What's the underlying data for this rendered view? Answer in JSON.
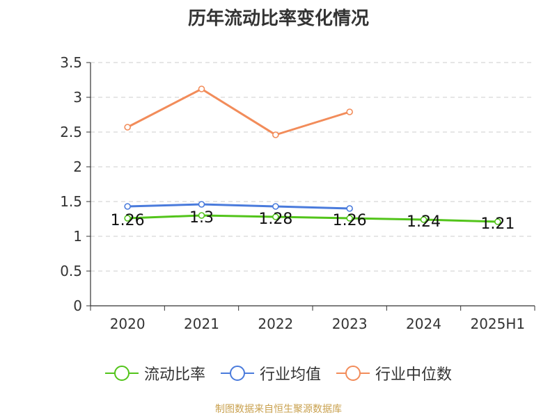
{
  "chart_data": {
    "type": "line",
    "title": "历年流动比率变化情况",
    "categories": [
      "2020",
      "2021",
      "2022",
      "2023",
      "2024",
      "2025H1"
    ],
    "y_ticks": [
      "0",
      "0.5",
      "1",
      "1.5",
      "2",
      "2.5",
      "3",
      "3.5"
    ],
    "ylim": [
      0,
      3.5
    ],
    "grid": true,
    "legend_position": "bottom",
    "series": [
      {
        "name": "流动比率",
        "color": "#52c41a",
        "values": [
          1.26,
          1.3,
          1.28,
          1.26,
          1.24,
          1.21
        ],
        "labels": [
          "1.26",
          "1.3",
          "1.28",
          "1.26",
          "1.24",
          "1.21"
        ]
      },
      {
        "name": "行业均值",
        "color": "#4a7bdc",
        "values": [
          1.43,
          1.46,
          1.43,
          1.4,
          null,
          null
        ]
      },
      {
        "name": "行业中位数",
        "color": "#f28c5a",
        "values": [
          2.57,
          3.12,
          2.46,
          2.79,
          null,
          null
        ]
      }
    ]
  },
  "footer": {
    "source": "制图数据来自恒生聚源数据库"
  }
}
